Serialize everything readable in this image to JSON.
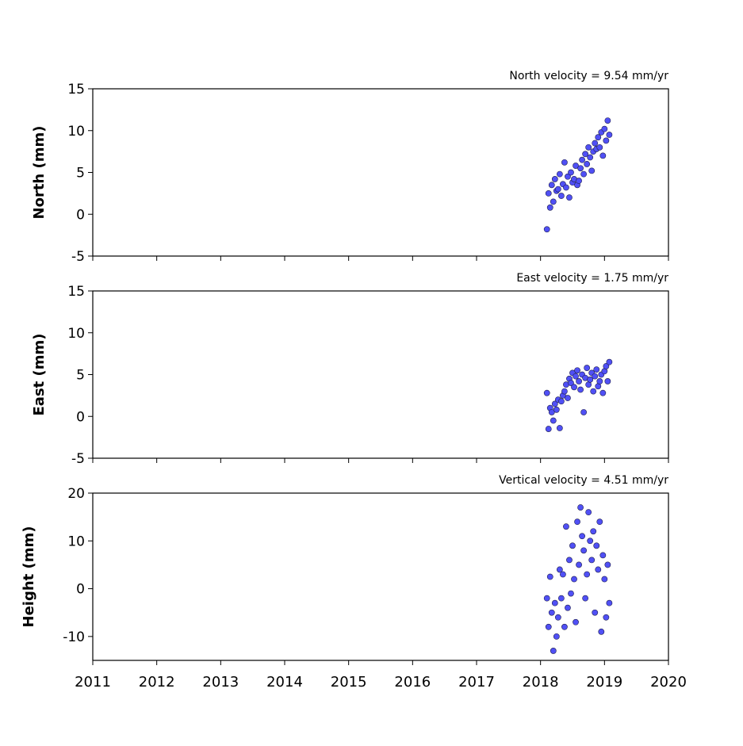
{
  "chart_data": [
    {
      "type": "scatter",
      "title": "North velocity = 9.54 mm/yr",
      "ylabel": "North (mm)",
      "color": "#5050f5",
      "x": [
        2018.1,
        2018.125,
        2018.15,
        2018.175,
        2018.2,
        2018.225,
        2018.25,
        2018.275,
        2018.3,
        2018.325,
        2018.35,
        2018.375,
        2018.4,
        2018.425,
        2018.45,
        2018.475,
        2018.5,
        2018.525,
        2018.55,
        2018.575,
        2018.6,
        2018.625,
        2018.65,
        2018.675,
        2018.7,
        2018.725,
        2018.75,
        2018.775,
        2018.8,
        2018.825,
        2018.85,
        2018.875,
        2018.9,
        2018.925,
        2018.95,
        2018.975,
        2019.0,
        2019.025,
        2019.05,
        2019.075
      ],
      "values": [
        -1.8,
        2.5,
        0.8,
        3.5,
        1.5,
        4.2,
        2.8,
        3.0,
        4.8,
        2.2,
        3.6,
        6.2,
        3.2,
        4.5,
        2.0,
        5.0,
        3.8,
        4.2,
        5.8,
        3.5,
        4.0,
        5.5,
        6.5,
        4.8,
        7.2,
        6.0,
        8.0,
        6.8,
        5.2,
        7.5,
        8.5,
        7.8,
        9.2,
        8.0,
        9.8,
        7.0,
        10.2,
        8.8,
        11.2,
        9.5
      ],
      "xlim": [
        2011,
        2020
      ],
      "xticks": [
        2011,
        2012,
        2013,
        2014,
        2015,
        2016,
        2017,
        2018,
        2019,
        2020
      ],
      "ylim": [
        -5,
        15
      ],
      "yticks": [
        -5,
        0,
        5,
        10,
        15
      ]
    },
    {
      "type": "scatter",
      "title": "East velocity = 1.75 mm/yr",
      "ylabel": "East (mm)",
      "color": "#5050f5",
      "x": [
        2018.1,
        2018.125,
        2018.15,
        2018.175,
        2018.2,
        2018.225,
        2018.25,
        2018.275,
        2018.3,
        2018.325,
        2018.35,
        2018.375,
        2018.4,
        2018.425,
        2018.45,
        2018.475,
        2018.5,
        2018.525,
        2018.55,
        2018.575,
        2018.6,
        2018.625,
        2018.65,
        2018.675,
        2018.7,
        2018.725,
        2018.75,
        2018.775,
        2018.8,
        2018.825,
        2018.85,
        2018.875,
        2018.9,
        2018.925,
        2018.95,
        2018.975,
        2019.0,
        2019.025,
        2019.05,
        2019.075
      ],
      "values": [
        2.8,
        -1.5,
        1.0,
        0.5,
        -0.5,
        1.5,
        0.8,
        2.0,
        -1.4,
        1.8,
        2.5,
        3.0,
        3.8,
        2.2,
        4.5,
        4.0,
        5.2,
        3.5,
        4.8,
        5.5,
        4.2,
        3.2,
        5.0,
        0.5,
        4.6,
        5.8,
        3.8,
        4.4,
        5.2,
        3.0,
        4.8,
        5.6,
        3.6,
        4.2,
        5.0,
        2.8,
        5.4,
        6.0,
        4.2,
        6.5
      ],
      "xlim": [
        2011,
        2020
      ],
      "xticks": [
        2011,
        2012,
        2013,
        2014,
        2015,
        2016,
        2017,
        2018,
        2019,
        2020
      ],
      "ylim": [
        -5,
        15
      ],
      "yticks": [
        -5,
        0,
        5,
        10,
        15
      ]
    },
    {
      "type": "scatter",
      "title": "Vertical velocity = 4.51 mm/yr",
      "ylabel": "Height (mm)",
      "color": "#5050f5",
      "x": [
        2018.1,
        2018.125,
        2018.15,
        2018.175,
        2018.2,
        2018.225,
        2018.25,
        2018.275,
        2018.3,
        2018.325,
        2018.35,
        2018.375,
        2018.4,
        2018.425,
        2018.45,
        2018.475,
        2018.5,
        2018.525,
        2018.55,
        2018.575,
        2018.6,
        2018.625,
        2018.65,
        2018.675,
        2018.7,
        2018.725,
        2018.75,
        2018.775,
        2018.8,
        2018.825,
        2018.85,
        2018.875,
        2018.9,
        2018.925,
        2018.95,
        2018.975,
        2019.0,
        2019.025,
        2019.05,
        2019.075
      ],
      "values": [
        -2,
        -8,
        2.5,
        -5,
        -13,
        -3,
        -10,
        -6,
        4,
        -2,
        3,
        -8,
        13,
        -4,
        6,
        -1,
        9,
        2,
        -7,
        14,
        5,
        17,
        11,
        8,
        -2,
        3,
        16,
        10,
        6,
        12,
        -5,
        9,
        4,
        14,
        -9,
        7,
        2,
        -6,
        5,
        -3
      ],
      "xlim": [
        2011,
        2020
      ],
      "xticks": [
        2011,
        2012,
        2013,
        2014,
        2015,
        2016,
        2017,
        2018,
        2019,
        2020
      ],
      "ylim": [
        -15,
        20
      ],
      "yticks": [
        -10,
        0,
        10,
        20
      ]
    }
  ]
}
